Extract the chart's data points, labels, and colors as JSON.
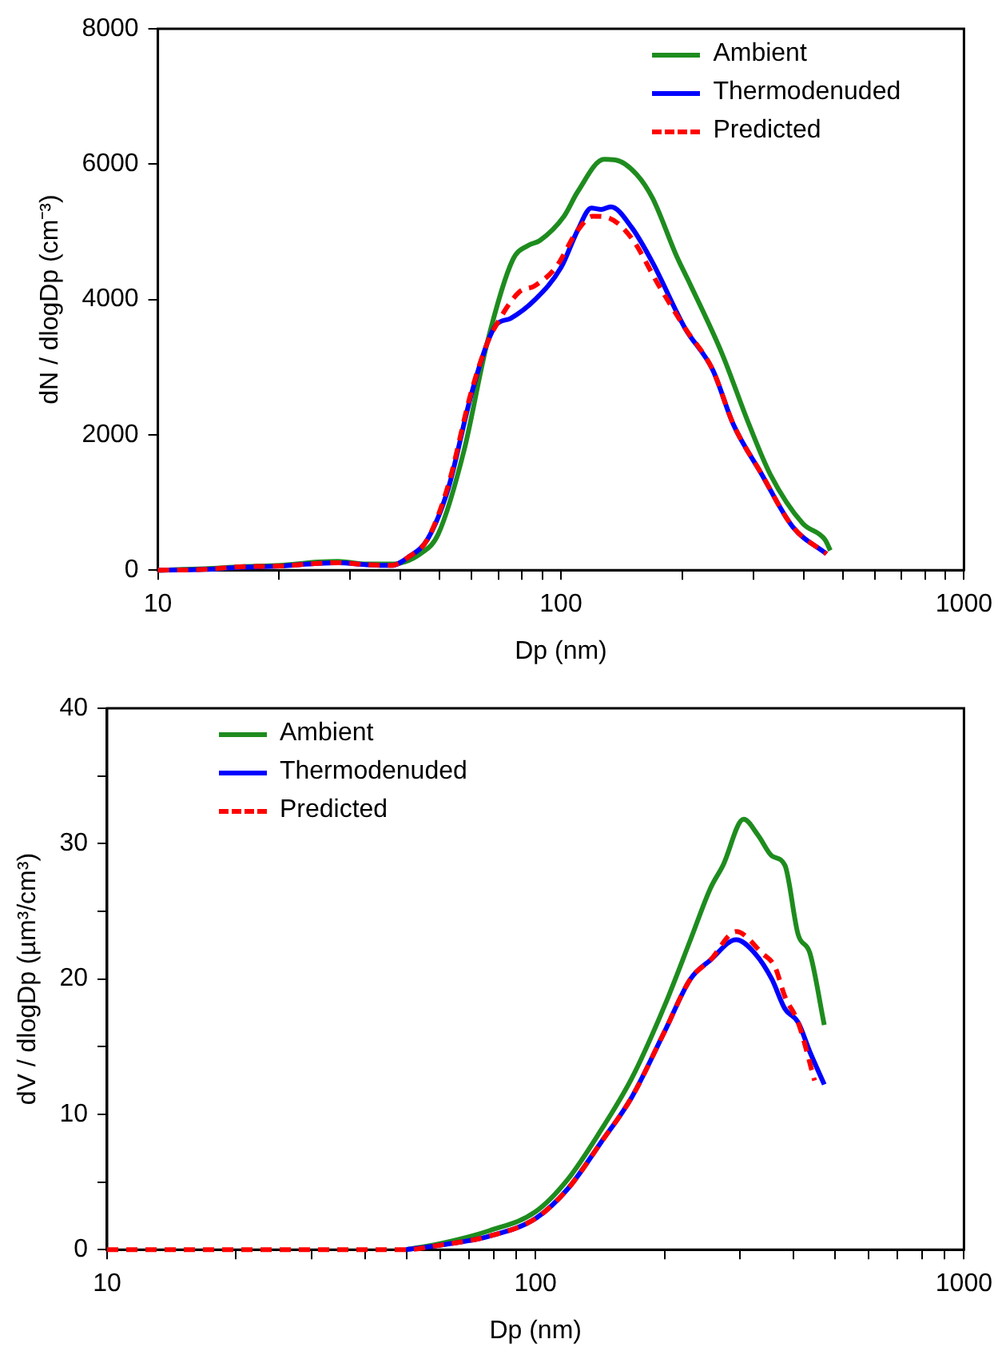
{
  "chart_data": [
    {
      "type": "line",
      "xlabel": "Dp (nm)",
      "ylabel": "dN / dlogDp (cm⁻³)",
      "log": "x",
      "legend": "top right",
      "grid": false,
      "marker": "none",
      "xlim": [
        10,
        1000
      ],
      "xticks": [
        10,
        {
          "value": 20,
          "label": null
        },
        {
          "value": 30,
          "label": null
        },
        {
          "value": 40,
          "label": null
        },
        {
          "value": 50,
          "label": null
        },
        {
          "value": 60,
          "label": null
        },
        {
          "value": 70,
          "label": null
        },
        {
          "value": 80,
          "label": null
        },
        {
          "value": 90,
          "label": null
        },
        100,
        {
          "value": 200,
          "label": null
        },
        {
          "value": 300,
          "label": null
        },
        {
          "value": 400,
          "label": null
        },
        {
          "value": 500,
          "label": null
        },
        {
          "value": 600,
          "label": null
        },
        {
          "value": 700,
          "label": null
        },
        {
          "value": 800,
          "label": null
        },
        {
          "value": 900,
          "label": null
        },
        1000
      ],
      "ylim": [
        0,
        8000
      ],
      "yticks": [
        0,
        2000,
        4000,
        6000,
        8000
      ],
      "series": [
        {
          "name": "Ambient",
          "color": "#1e8c1e",
          "line_style": "solid",
          "x": [
            10,
            13,
            16,
            20,
            25,
            28,
            33,
            38,
            45,
            49.6,
            57.5,
            65.5,
            76,
            83,
            88.6,
            101.8,
            110,
            128,
            137,
            154,
            169,
            194,
            209,
            251,
            293,
            331,
            398,
            452,
            466
          ],
          "values": [
            0,
            20,
            50,
            70,
            120,
            130,
            90,
            90,
            250,
            530,
            1770,
            3340,
            4590,
            4800,
            4870,
            5230,
            5590,
            6070,
            6060,
            5850,
            5490,
            4630,
            4230,
            3200,
            2150,
            1410,
            690,
            450,
            290
          ]
        },
        {
          "name": "Thermodenuded",
          "color": "#0000ff",
          "line_style": "solid",
          "x": [
            10,
            13,
            16,
            20,
            25,
            28,
            33,
            38,
            42,
            46.6,
            52.5,
            59.7,
            65.5,
            69.2,
            75,
            86,
            100,
            110,
            119,
            126,
            133,
            150,
            169,
            203,
            238,
            268,
            314,
            376,
            456
          ],
          "values": [
            0,
            10,
            40,
            60,
            100,
            110,
            80,
            70,
            200,
            450,
            1200,
            2560,
            3340,
            3630,
            3720,
            3990,
            4470,
            5020,
            5350,
            5330,
            5370,
            5060,
            4540,
            3580,
            2960,
            2150,
            1430,
            640,
            240
          ]
        },
        {
          "name": "Predicted",
          "color": "#ff0000",
          "line_style": "dashed",
          "x": [
            10,
            13,
            16,
            20,
            25,
            28,
            33,
            38,
            42,
            46.6,
            52.5,
            59.7,
            65.5,
            69.2,
            78.8,
            86,
            97,
            110,
            120,
            132,
            150,
            174,
            203,
            238,
            268,
            314,
            376,
            456
          ],
          "values": [
            0,
            10,
            50,
            60,
            100,
            110,
            80,
            70,
            200,
            450,
            1250,
            2600,
            3340,
            3630,
            4110,
            4200,
            4470,
            5020,
            5230,
            5200,
            4900,
            4230,
            3580,
            2960,
            2150,
            1430,
            640,
            240
          ]
        }
      ]
    },
    {
      "type": "line",
      "xlabel": "Dp (nm)",
      "ylabel": "dV / dlogDp (µm³/cm³)",
      "log": "x",
      "legend": "top left",
      "grid": false,
      "marker": "none",
      "xlim": [
        10,
        1000
      ],
      "xticks": [
        10,
        {
          "value": 20,
          "label": null
        },
        {
          "value": 30,
          "label": null
        },
        {
          "value": 40,
          "label": null
        },
        {
          "value": 50,
          "label": null
        },
        {
          "value": 60,
          "label": null
        },
        {
          "value": 70,
          "label": null
        },
        {
          "value": 80,
          "label": null
        },
        {
          "value": 90,
          "label": null
        },
        100,
        {
          "value": 200,
          "label": null
        },
        {
          "value": 300,
          "label": null
        },
        {
          "value": 400,
          "label": null
        },
        {
          "value": 500,
          "label": null
        },
        {
          "value": 600,
          "label": null
        },
        {
          "value": 700,
          "label": null
        },
        {
          "value": 800,
          "label": null
        },
        {
          "value": 900,
          "label": null
        },
        1000
      ],
      "ylim": [
        0,
        40
      ],
      "yticks": [
        0,
        {
          "value": 5,
          "label": null
        },
        10,
        {
          "value": 15,
          "label": null
        },
        20,
        {
          "value": 25,
          "label": null
        },
        30,
        {
          "value": 35,
          "label": null
        },
        40
      ],
      "series": [
        {
          "name": "Ambient",
          "color": "#1e8c1e",
          "line_style": "solid",
          "x": [
            49.9,
            59,
            78,
            100,
            119,
            142,
            168,
            200,
            230,
            256,
            274,
            306,
            331,
            356,
            382,
            410,
            437,
            472
          ],
          "values": [
            0,
            0.4,
            1.4,
            2.8,
            5.2,
            8.8,
            12.7,
            18,
            22.9,
            26.7,
            28.4,
            31.8,
            30.6,
            29.1,
            28.4,
            23.3,
            21.9,
            16.6
          ]
        },
        {
          "name": "Thermodenuded",
          "color": "#0000ff",
          "line_style": "solid",
          "x": [
            49.9,
            59,
            78,
            100,
            119,
            142,
            168,
            200,
            230,
            256,
            294,
            325,
            356,
            382,
            410,
            437,
            472
          ],
          "values": [
            0,
            0.3,
            1.0,
            2.3,
            4.5,
            7.9,
            11.3,
            16.1,
            20,
            21.4,
            22.9,
            21.9,
            20,
            17.8,
            16.8,
            14.6,
            12.2
          ]
        },
        {
          "name": "Predicted",
          "color": "#ff0000",
          "line_style": "dashed",
          "x": [
            10,
            20,
            30,
            40,
            49.9,
            59,
            78,
            100,
            119,
            142,
            168,
            200,
            230,
            256,
            294,
            338,
            362,
            382,
            410,
            448
          ],
          "values": [
            0,
            0,
            0,
            0,
            0,
            0.3,
            1.0,
            2.3,
            4.5,
            7.9,
            11.3,
            16.1,
            20,
            21.4,
            23.5,
            21.9,
            20.9,
            18.7,
            16.8,
            12.5
          ]
        }
      ]
    }
  ]
}
